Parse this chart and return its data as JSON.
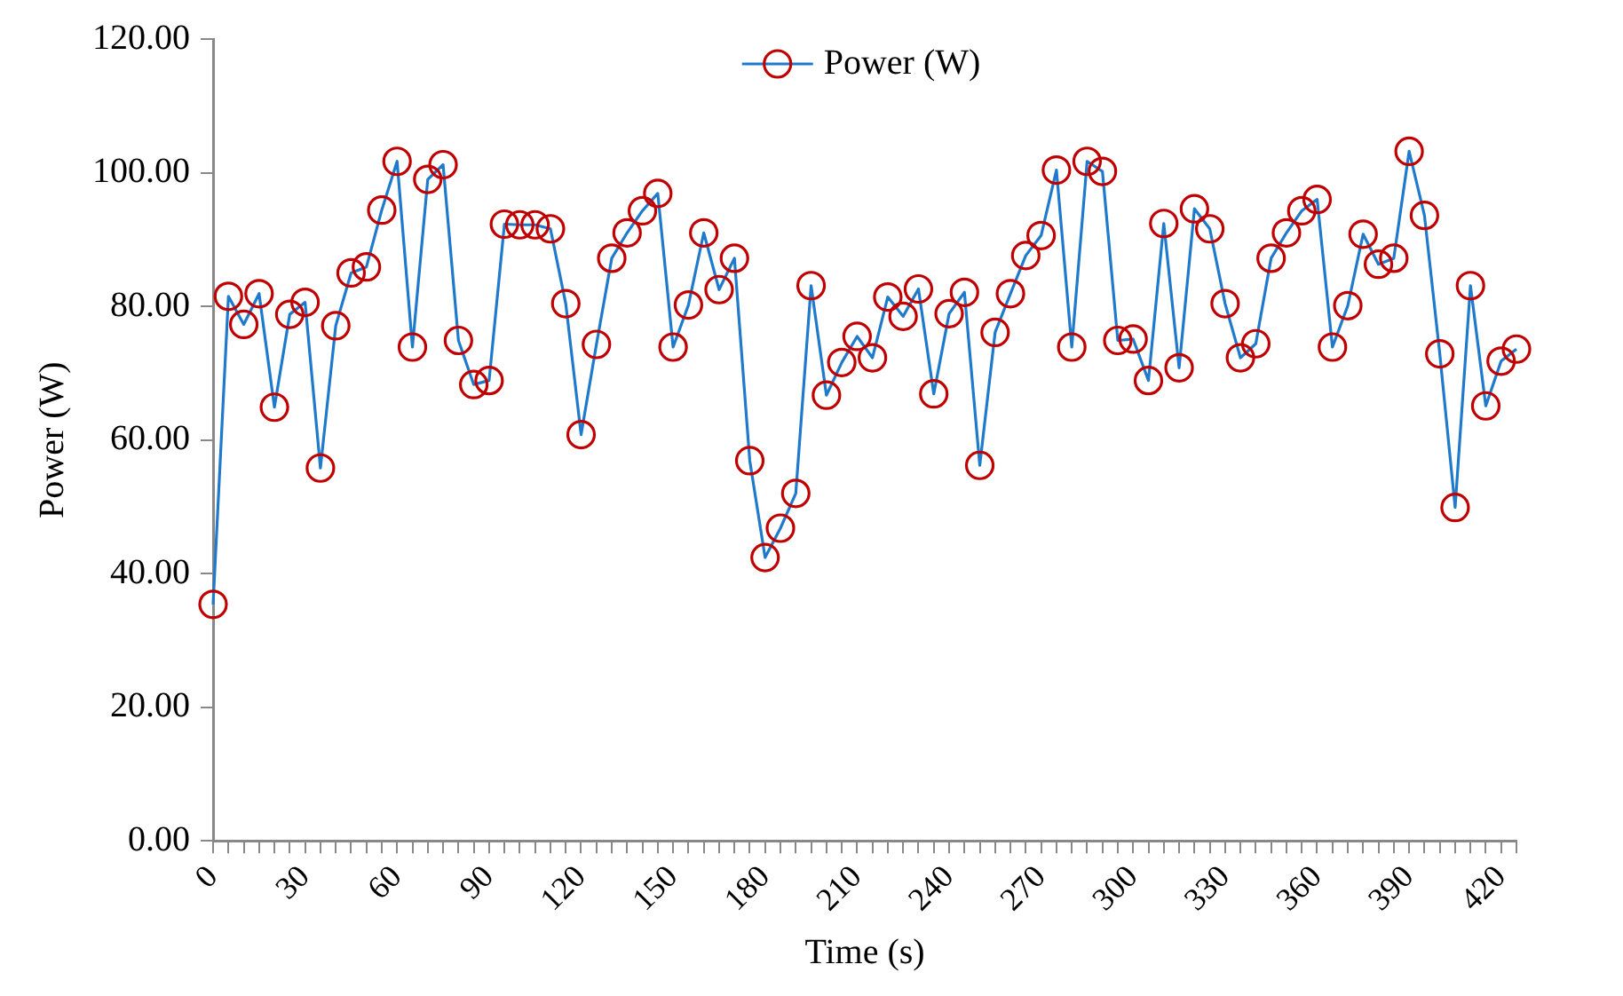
{
  "chart_data": {
    "type": "line",
    "xlabel": "Time (s)",
    "ylabel": "Power (W)",
    "categories": [
      "0",
      null,
      null,
      null,
      null,
      null,
      "30",
      null,
      null,
      null,
      null,
      null,
      "60",
      null,
      null,
      null,
      null,
      null,
      "90",
      null,
      null,
      null,
      null,
      null,
      "120",
      null,
      null,
      null,
      null,
      null,
      "150",
      null,
      null,
      null,
      null,
      null,
      "180",
      null,
      null,
      null,
      null,
      null,
      "210",
      null,
      null,
      null,
      null,
      null,
      "240",
      null,
      null,
      null,
      null,
      null,
      "270",
      null,
      null,
      null,
      null,
      null,
      "300",
      null,
      null,
      null,
      null,
      null,
      "330",
      null,
      null,
      null,
      null,
      null,
      "360",
      null,
      null,
      null,
      null,
      null,
      "390",
      null,
      null,
      null,
      null,
      null,
      "420",
      null
    ],
    "series": [
      {
        "name": "Power (W)",
        "color": "#1f7acb",
        "values": [
          35.4,
          81.5,
          77.3,
          81.9,
          64.9,
          78.8,
          80.6,
          55.8,
          77.1,
          85.0,
          85.9,
          94.4,
          101.7,
          73.9,
          99.0,
          101.2,
          74.9,
          68.3,
          68.9,
          92.3,
          92.2,
          92.2,
          91.6,
          80.4,
          60.8,
          74.3,
          87.2,
          91.0,
          94.3,
          96.9,
          73.9,
          80.2,
          91.0,
          82.5,
          87.2,
          56.9,
          42.4,
          46.8,
          52.0,
          83.1,
          66.7,
          71.6,
          75.5,
          72.3,
          81.4,
          78.5,
          82.6,
          66.9,
          78.9,
          82.1,
          56.2,
          76.1,
          81.9,
          87.6,
          90.6,
          100.4,
          73.9,
          101.7,
          100.2,
          74.9,
          75.1,
          68.9,
          92.4,
          70.8,
          94.6,
          91.6,
          80.4,
          72.3,
          74.4,
          87.2,
          91.0,
          94.3,
          96.0,
          73.9,
          80.1,
          90.8,
          86.3,
          87.2,
          103.2,
          93.6,
          72.9,
          49.9,
          83.1,
          65.1,
          71.8,
          73.6
        ]
      }
    ],
    "ylim": [
      0,
      120
    ],
    "yticks": [
      {
        "value": 0,
        "label": "0.00"
      },
      {
        "value": 20,
        "label": "20.00"
      },
      {
        "value": 40,
        "label": "40.00"
      },
      {
        "value": 60,
        "label": "60.00"
      },
      {
        "value": 80,
        "label": "80.00"
      },
      {
        "value": 100,
        "label": "100.00"
      },
      {
        "value": 120,
        "label": "120.00"
      }
    ],
    "legend": "top",
    "marker": "circle",
    "line_style": "solid",
    "grid": false
  }
}
